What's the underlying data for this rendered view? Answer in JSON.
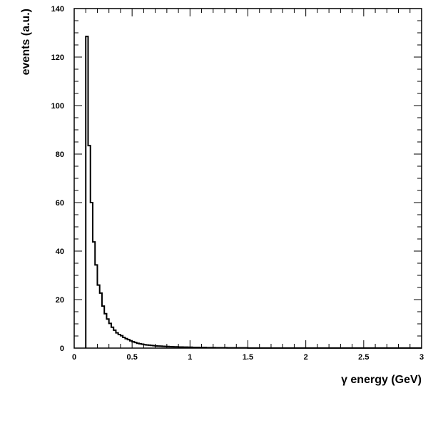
{
  "chart_data": {
    "type": "histogram",
    "title": "",
    "xlabel": "γ energy (GeV)",
    "ylabel": "events (a.u.)",
    "xlim": [
      0,
      3
    ],
    "ylim": [
      0,
      140
    ],
    "x_ticks": [
      "0",
      "0.5",
      "1",
      "1.5",
      "2",
      "2.5",
      "3"
    ],
    "y_ticks": [
      "0",
      "20",
      "40",
      "60",
      "80",
      "100",
      "120",
      "140"
    ],
    "grid": false,
    "legend": "none",
    "line_color": "#000000",
    "bin_width": 0.02,
    "bin_start": 0.1,
    "series": [
      {
        "values": [
          128.5,
          83.5,
          60.0,
          43.8,
          34.3,
          26.0,
          22.7,
          17.3,
          14.2,
          12.0,
          10.2,
          8.6,
          7.4,
          6.3,
          5.6,
          5.1,
          4.4,
          3.9,
          3.5,
          3.0,
          2.6,
          2.3,
          2.0,
          1.8,
          1.6,
          1.4,
          1.3,
          1.2,
          1.1,
          1.0,
          0.9,
          0.85,
          0.8,
          0.75,
          0.7,
          0.65,
          0.6,
          0.55,
          0.5,
          0.5,
          0.45,
          0.45,
          0.4,
          0.4,
          0.35,
          0.35,
          0.3,
          0.3,
          0.3,
          0.25,
          0.25,
          0.25,
          0.2,
          0.2,
          0.2,
          0.2,
          0.15,
          0.15,
          0.15,
          0.15,
          0.15,
          0.1,
          0.1,
          0.1,
          0.1,
          0.1,
          0.1,
          0.1,
          0.1,
          0.1,
          0.05,
          0.05,
          0.05,
          0.05,
          0.05,
          0.05,
          0.05,
          0.05,
          0.05,
          0.05,
          0.05,
          0.05,
          0.05,
          0.05,
          0.05,
          0.05,
          0.05,
          0.05,
          0.05,
          0.05,
          0.05,
          0.05,
          0.05,
          0.05,
          0.05,
          0.05,
          0.05,
          0.05,
          0.05,
          0.05,
          0.05,
          0.05,
          0.05,
          0.05,
          0.05,
          0.05,
          0.05,
          0.05,
          0.05,
          0.05,
          0.05,
          0.05,
          0.05,
          0.05,
          0.05,
          0.05,
          0.05,
          0.05,
          0.05,
          0.05,
          0.05,
          0.05,
          0.05,
          0.05,
          0.05,
          0.05,
          0.05,
          0.05,
          0.05,
          0.05,
          0.05,
          0.05,
          0.05,
          0.05,
          0.05,
          0.05,
          0.05,
          0.05,
          0.05,
          0.05,
          0.05,
          0.05,
          0.05,
          0.05,
          0.05
        ]
      }
    ]
  }
}
